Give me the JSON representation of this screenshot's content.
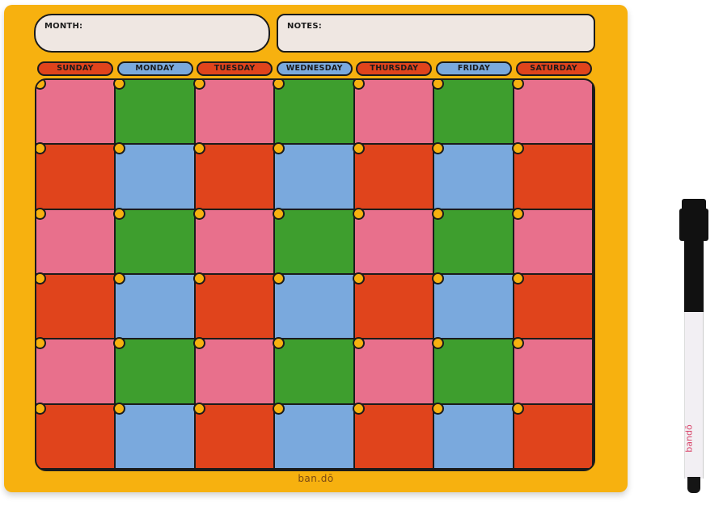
{
  "board": {
    "month_label": "MONTH:",
    "notes_label": "NOTES:",
    "brand": "ban.dō",
    "colors": {
      "frame": "#f7b10f",
      "pink": "#e8708c",
      "green": "#3e9e2e",
      "red": "#e0441c",
      "blue": "#7aa9dd",
      "outline": "#1b1b1b",
      "field": "#efe7e2"
    }
  },
  "days": [
    {
      "label": "SUNDAY",
      "color": "#e0441c"
    },
    {
      "label": "MONDAY",
      "color": "#7aa9dd"
    },
    {
      "label": "TUESDAY",
      "color": "#e0441c"
    },
    {
      "label": "WEDNESDAY",
      "color": "#7aa9dd"
    },
    {
      "label": "THURSDAY",
      "color": "#e0441c"
    },
    {
      "label": "FRIDAY",
      "color": "#7aa9dd"
    },
    {
      "label": "SATURDAY",
      "color": "#e0441c"
    }
  ],
  "grid": {
    "rows": 6,
    "cols": 7,
    "row_patterns": [
      [
        "#e8708c",
        "#3e9e2e"
      ],
      [
        "#e0441c",
        "#7aa9dd"
      ]
    ]
  },
  "marker": {
    "brand": "bandō"
  }
}
